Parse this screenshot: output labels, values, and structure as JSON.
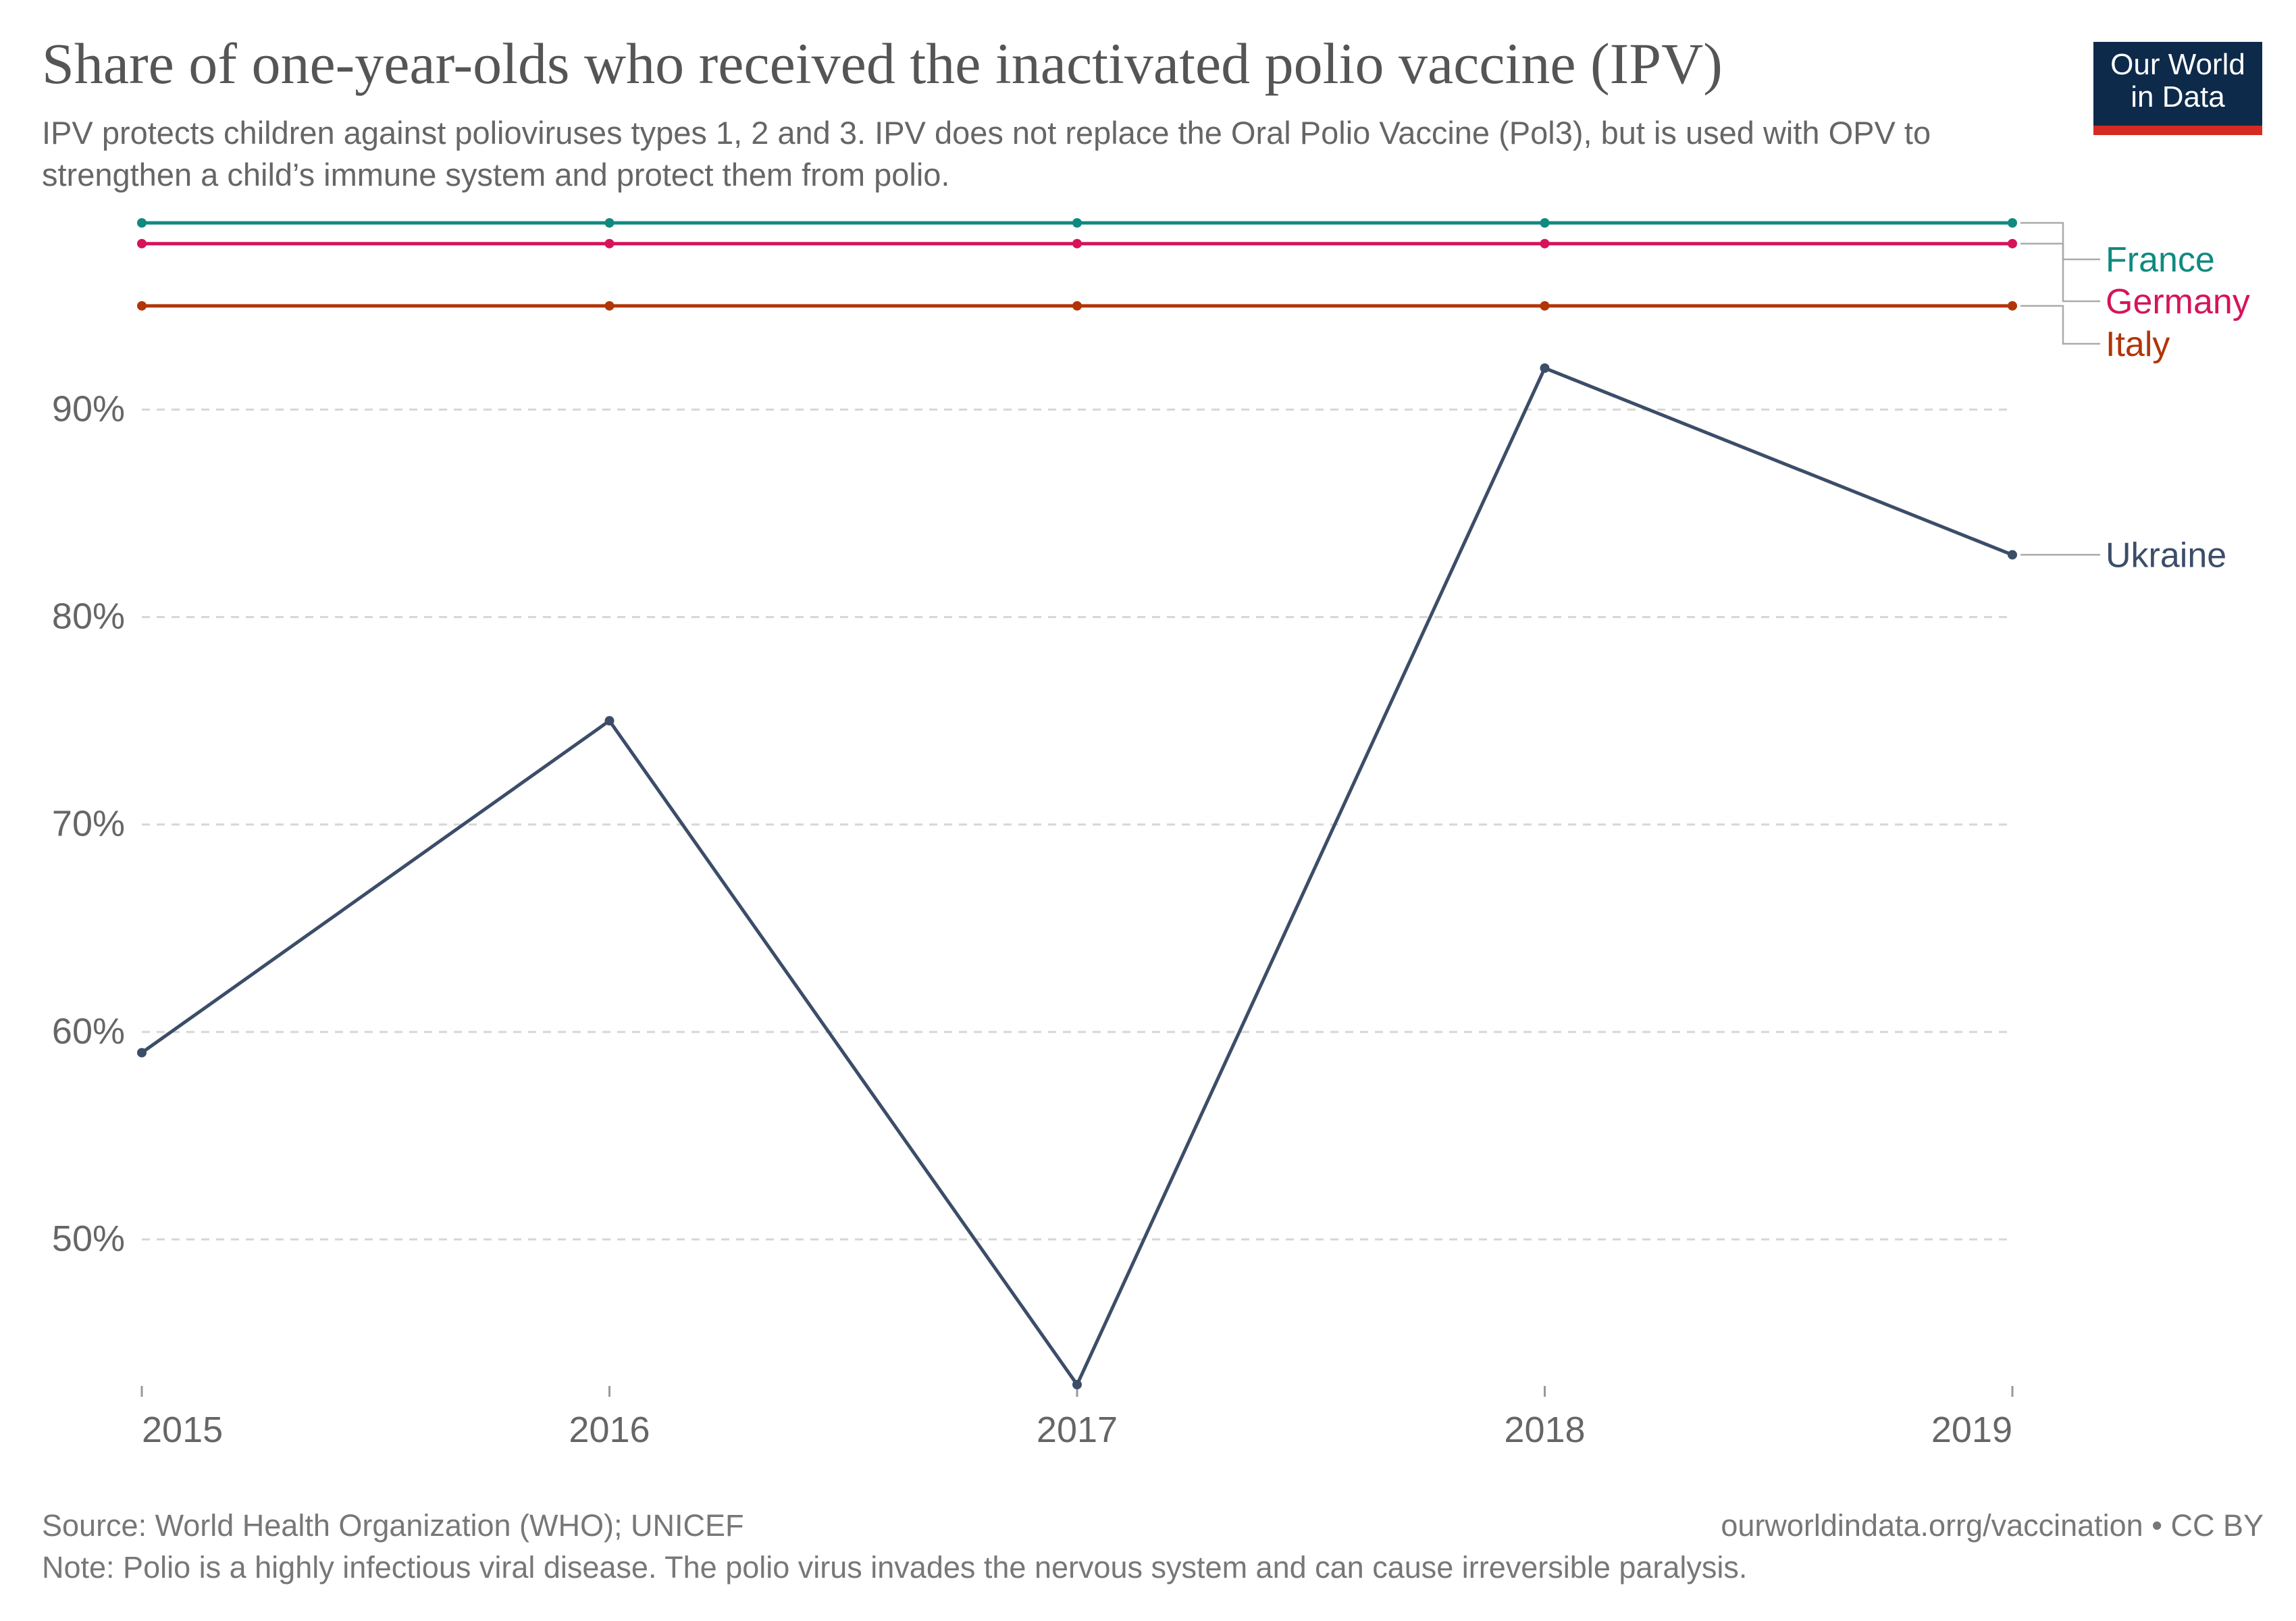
{
  "title": "Share of one-year-olds who received the inactivated polio vaccine (IPV)",
  "subtitle": "IPV protects children against polioviruses types 1, 2 and 3. IPV does not replace the Oral Polio Vaccine (Pol3), but is used with OPV to strengthen a child’s immune system and protect them from polio.",
  "logo": {
    "line1": "Our World",
    "line2": "in Data",
    "bg_color": "#0d2a4a",
    "accent_color": "#d42b21"
  },
  "footer": {
    "source": "Source: World Health Organization (WHO); UNICEF",
    "url": "ourworldindata.orrg/vaccination • CC BY",
    "note": "Note: Polio is a highly infectious viral disease. The polio virus invades the nervous system and can cause irreversible paralysis."
  },
  "chart_data": {
    "type": "line",
    "x": [
      2015,
      2016,
      2017,
      2018,
      2019
    ],
    "x_tick_labels": [
      "2015",
      "2016",
      "2017",
      "2018",
      "2019"
    ],
    "y_ticks": [
      50,
      60,
      70,
      80,
      90
    ],
    "y_tick_labels": [
      "50%",
      "60%",
      "70%",
      "80%",
      "90%"
    ],
    "ylim": [
      43,
      99
    ],
    "grid": "horizontal dashed",
    "legend": "right, labels at line ends",
    "series": [
      {
        "name": "France",
        "color": "#0f8a80",
        "values": [
          99,
          99,
          99,
          99,
          99
        ]
      },
      {
        "name": "Germany",
        "color": "#d5145a",
        "values": [
          98,
          98,
          98,
          98,
          98
        ]
      },
      {
        "name": "Italy",
        "color": "#b13507",
        "values": [
          95,
          95,
          95,
          95,
          95
        ]
      },
      {
        "name": "Ukraine",
        "color": "#3c4d68",
        "values": [
          59,
          75,
          43,
          92,
          83
        ]
      }
    ]
  }
}
